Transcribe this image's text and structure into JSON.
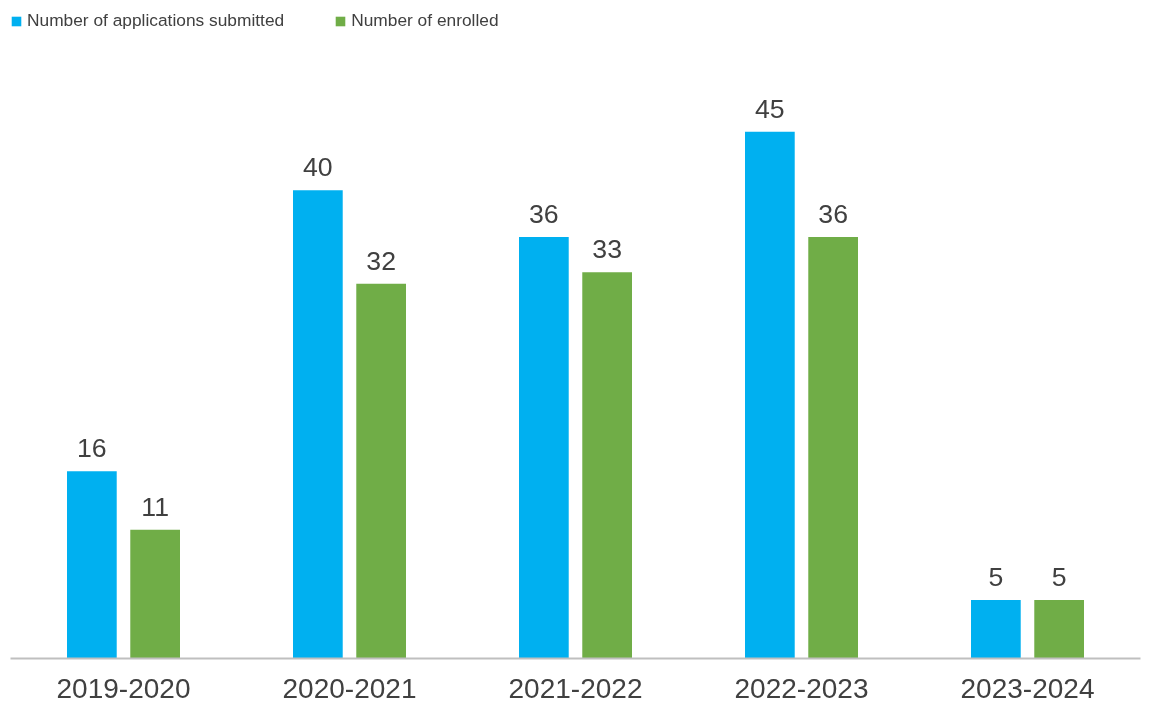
{
  "chart_data": {
    "type": "bar",
    "categories": [
      "2019-2020",
      "2020-2021",
      "2021-2022",
      "2022-2023",
      "2023-2024"
    ],
    "series": [
      {
        "name": "Number of applications submitted",
        "color": "#00b0f0",
        "values": [
          16,
          40,
          36,
          45,
          5
        ]
      },
      {
        "name": "Number of enrolled",
        "color": "#70ad47",
        "values": [
          11,
          32,
          33,
          36,
          5
        ]
      }
    ],
    "data_labels": true,
    "grid": false,
    "legend": "top left"
  }
}
